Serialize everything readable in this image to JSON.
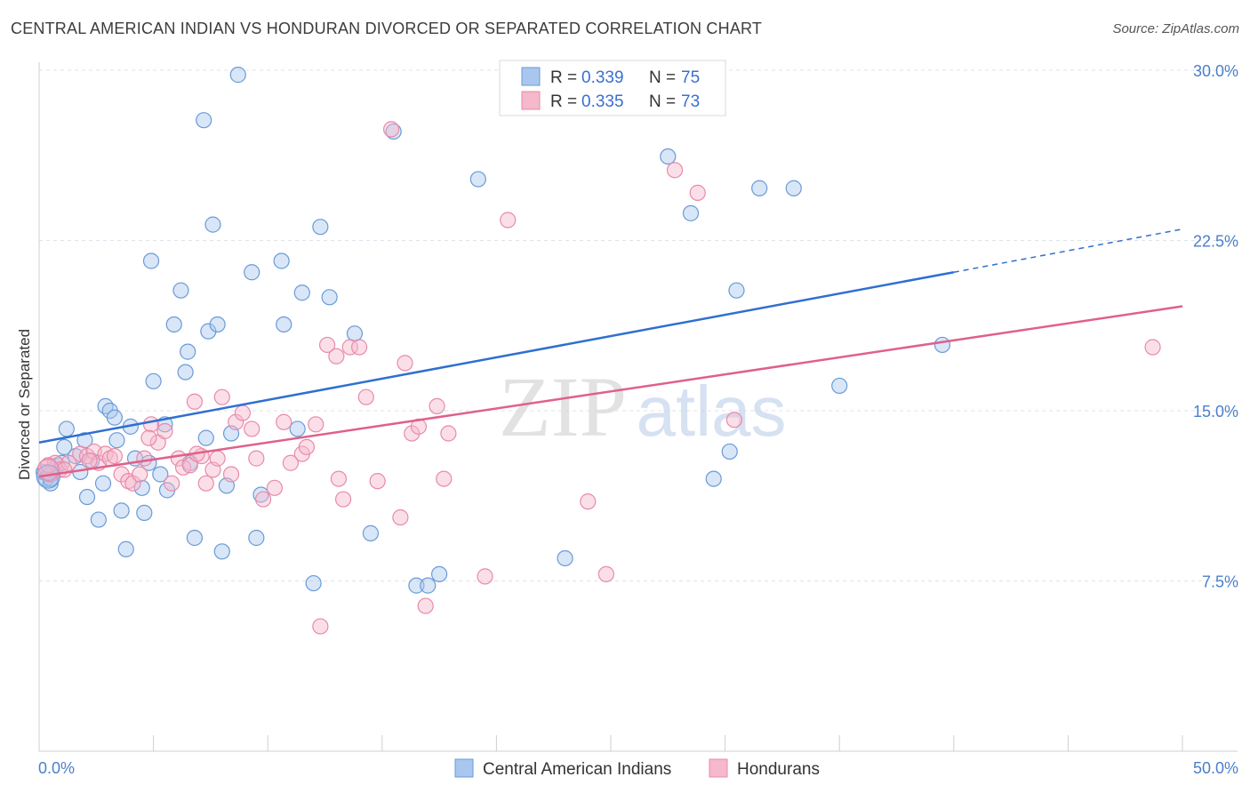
{
  "title": "CENTRAL AMERICAN INDIAN VS HONDURAN DIVORCED OR SEPARATED CORRELATION CHART",
  "source": "Source: ZipAtlas.com",
  "watermark": {
    "zip": "ZIP",
    "atlas": "atlas"
  },
  "colors": {
    "blue_fill": "#a9c7ee",
    "blue_stroke": "#6a9ad8",
    "blue_line": "#2f6fd0",
    "pink_fill": "#f6b8cb",
    "pink_stroke": "#e88aa8",
    "pink_line": "#e0608a",
    "grid": "#dde3ec",
    "tick_text": "#4a7fcb"
  },
  "legend": {
    "rows": [
      {
        "r_label": "R = ",
        "r_value": "0.339",
        "n_label": "N = ",
        "n_value": "75"
      },
      {
        "r_label": "R = ",
        "r_value": "0.335",
        "n_label": "N = ",
        "n_value": "73"
      }
    ]
  },
  "chart_data": {
    "type": "scatter",
    "title": "CENTRAL AMERICAN INDIAN VS HONDURAN DIVORCED OR SEPARATED CORRELATION CHART",
    "xlabel": "",
    "ylabel": "Divorced or Separated",
    "xlim": [
      0,
      50
    ],
    "ylim": [
      0,
      31.5
    ],
    "x_tick_labels": [
      "0.0%",
      "50.0%"
    ],
    "y_ticks": [
      7.5,
      15.0,
      22.5,
      30.0
    ],
    "y_tick_labels": [
      "7.5%",
      "15.0%",
      "22.5%",
      "30.0%"
    ],
    "grid": true,
    "legend_position": "top-center",
    "series": [
      {
        "name": "Central American Indians",
        "color": "#6a9ad8",
        "trend": {
          "x": [
            0,
            40
          ],
          "y": [
            13.6,
            21.1
          ],
          "dashed_extension_to_x": 50,
          "dashed_end_y": 23.0
        },
        "points": [
          [
            0.3,
            12.0
          ],
          [
            0.4,
            12.2
          ],
          [
            0.5,
            11.8
          ],
          [
            0.6,
            12.4
          ],
          [
            0.8,
            12.6
          ],
          [
            1.0,
            12.7
          ],
          [
            1.1,
            13.4
          ],
          [
            1.2,
            14.2
          ],
          [
            1.6,
            13.0
          ],
          [
            1.8,
            12.3
          ],
          [
            2.0,
            13.7
          ],
          [
            2.1,
            11.2
          ],
          [
            2.3,
            12.8
          ],
          [
            2.6,
            10.2
          ],
          [
            2.8,
            11.8
          ],
          [
            2.9,
            15.2
          ],
          [
            3.1,
            15.0
          ],
          [
            3.3,
            14.7
          ],
          [
            3.4,
            13.7
          ],
          [
            3.6,
            10.6
          ],
          [
            3.8,
            8.9
          ],
          [
            4.0,
            14.3
          ],
          [
            4.2,
            12.9
          ],
          [
            4.5,
            11.6
          ],
          [
            4.6,
            10.5
          ],
          [
            4.8,
            12.7
          ],
          [
            4.9,
            21.6
          ],
          [
            5.0,
            16.3
          ],
          [
            5.3,
            12.2
          ],
          [
            5.5,
            14.4
          ],
          [
            5.6,
            11.5
          ],
          [
            5.9,
            18.8
          ],
          [
            6.2,
            20.3
          ],
          [
            6.4,
            16.7
          ],
          [
            6.5,
            17.6
          ],
          [
            6.6,
            12.7
          ],
          [
            6.8,
            9.4
          ],
          [
            7.2,
            27.8
          ],
          [
            7.3,
            13.8
          ],
          [
            7.4,
            18.5
          ],
          [
            7.6,
            23.2
          ],
          [
            7.8,
            18.8
          ],
          [
            8.0,
            8.8
          ],
          [
            8.2,
            11.7
          ],
          [
            8.4,
            14.0
          ],
          [
            8.7,
            29.8
          ],
          [
            9.3,
            21.1
          ],
          [
            9.5,
            9.4
          ],
          [
            9.7,
            11.3
          ],
          [
            10.6,
            21.6
          ],
          [
            10.7,
            18.8
          ],
          [
            11.3,
            14.2
          ],
          [
            11.5,
            20.2
          ],
          [
            12.0,
            7.4
          ],
          [
            12.3,
            23.1
          ],
          [
            12.7,
            20.0
          ],
          [
            13.8,
            18.4
          ],
          [
            14.5,
            9.6
          ],
          [
            15.5,
            27.3
          ],
          [
            16.5,
            7.3
          ],
          [
            17.0,
            7.3
          ],
          [
            17.5,
            7.8
          ],
          [
            19.2,
            25.2
          ],
          [
            23.0,
            8.5
          ],
          [
            27.5,
            26.2
          ],
          [
            28.5,
            23.7
          ],
          [
            29.5,
            12.0
          ],
          [
            30.2,
            13.2
          ],
          [
            30.5,
            20.3
          ],
          [
            31.5,
            24.8
          ],
          [
            33.0,
            24.8
          ],
          [
            35.0,
            16.1
          ],
          [
            39.5,
            17.9
          ],
          [
            0.2,
            12.3
          ],
          [
            0.5,
            12.0
          ]
        ]
      },
      {
        "name": "Hondurans",
        "color": "#e88aa8",
        "trend": {
          "x": [
            0,
            50
          ],
          "y": [
            12.1,
            19.6
          ]
        },
        "points": [
          [
            0.3,
            12.5
          ],
          [
            0.5,
            12.2
          ],
          [
            0.7,
            12.7
          ],
          [
            0.9,
            12.4
          ],
          [
            1.3,
            12.7
          ],
          [
            1.8,
            13.1
          ],
          [
            2.1,
            13.0
          ],
          [
            2.4,
            13.2
          ],
          [
            2.6,
            12.7
          ],
          [
            2.9,
            13.1
          ],
          [
            3.1,
            12.9
          ],
          [
            3.3,
            13.0
          ],
          [
            3.6,
            12.2
          ],
          [
            3.9,
            11.9
          ],
          [
            4.1,
            11.8
          ],
          [
            4.4,
            12.2
          ],
          [
            4.6,
            12.9
          ],
          [
            4.9,
            14.4
          ],
          [
            5.2,
            13.6
          ],
          [
            5.5,
            14.1
          ],
          [
            5.8,
            11.8
          ],
          [
            6.1,
            12.9
          ],
          [
            6.3,
            12.5
          ],
          [
            6.6,
            12.6
          ],
          [
            6.8,
            15.4
          ],
          [
            7.1,
            13.0
          ],
          [
            7.3,
            11.8
          ],
          [
            7.6,
            12.4
          ],
          [
            7.8,
            12.9
          ],
          [
            8.0,
            15.6
          ],
          [
            8.4,
            12.2
          ],
          [
            8.6,
            14.5
          ],
          [
            8.9,
            14.9
          ],
          [
            9.3,
            14.2
          ],
          [
            9.5,
            12.9
          ],
          [
            9.8,
            11.1
          ],
          [
            10.3,
            11.6
          ],
          [
            10.7,
            14.5
          ],
          [
            11.0,
            12.7
          ],
          [
            11.5,
            13.1
          ],
          [
            11.7,
            13.4
          ],
          [
            12.1,
            14.4
          ],
          [
            12.3,
            5.5
          ],
          [
            12.6,
            17.9
          ],
          [
            13.0,
            17.4
          ],
          [
            13.1,
            12.0
          ],
          [
            13.3,
            11.1
          ],
          [
            13.6,
            17.8
          ],
          [
            14.0,
            17.8
          ],
          [
            14.3,
            15.6
          ],
          [
            14.8,
            11.9
          ],
          [
            15.4,
            27.4
          ],
          [
            15.8,
            10.3
          ],
          [
            16.0,
            17.1
          ],
          [
            16.3,
            14.0
          ],
          [
            16.6,
            14.3
          ],
          [
            16.9,
            6.4
          ],
          [
            17.4,
            15.2
          ],
          [
            17.7,
            12.0
          ],
          [
            17.9,
            14.0
          ],
          [
            19.5,
            7.7
          ],
          [
            20.5,
            23.4
          ],
          [
            24.0,
            11.0
          ],
          [
            24.8,
            7.8
          ],
          [
            27.8,
            25.6
          ],
          [
            28.8,
            24.6
          ],
          [
            30.4,
            14.6
          ],
          [
            48.7,
            17.8
          ],
          [
            0.4,
            12.6
          ],
          [
            1.1,
            12.4
          ],
          [
            2.2,
            12.8
          ],
          [
            4.8,
            13.8
          ],
          [
            6.9,
            13.1
          ]
        ]
      }
    ]
  }
}
